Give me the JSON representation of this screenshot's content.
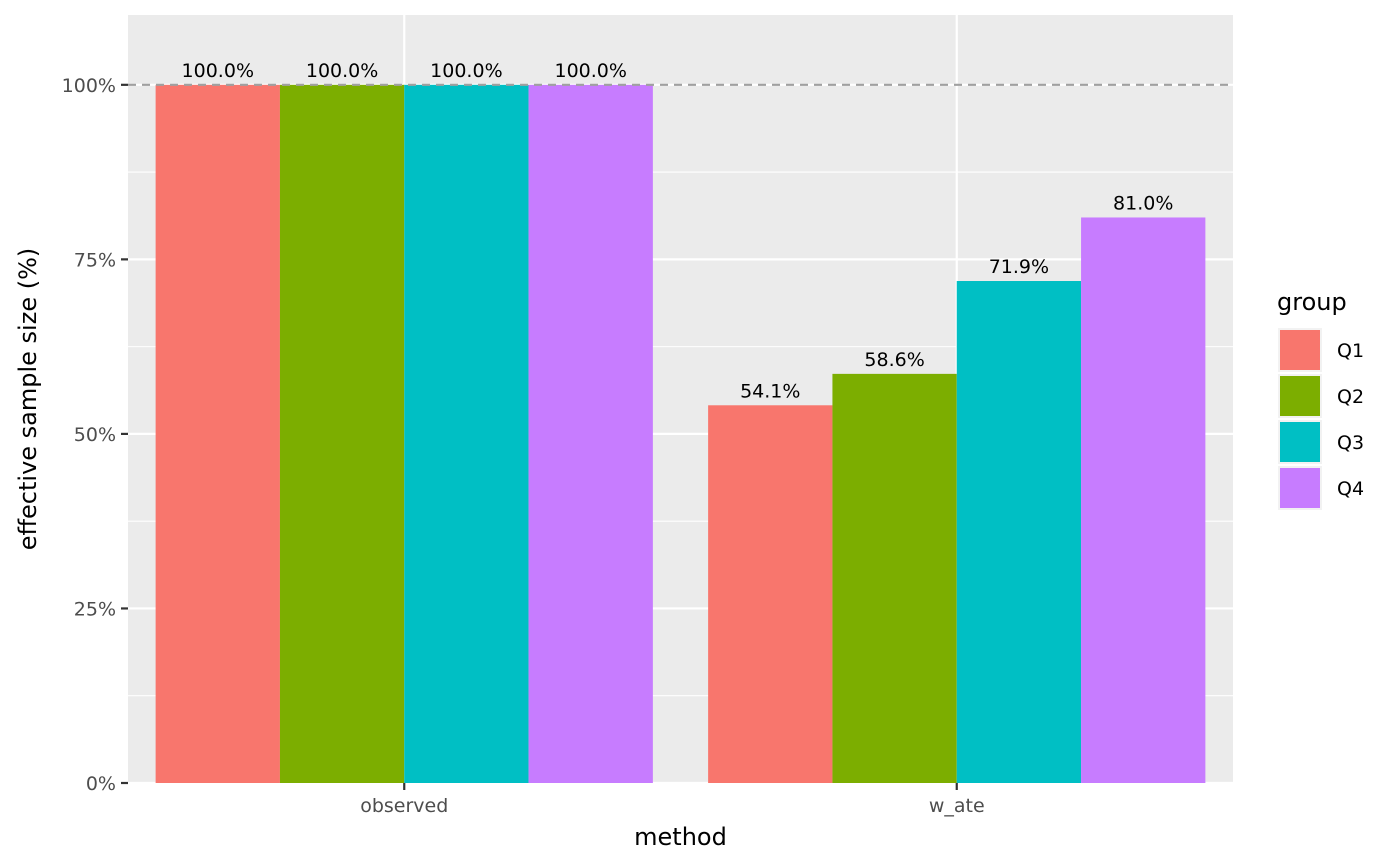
{
  "chart_data": {
    "type": "bar",
    "xlabel": "method",
    "ylabel": "effective sample size (%)",
    "categories": [
      "observed",
      "w_ate"
    ],
    "ylim": [
      0,
      110
    ],
    "y_ticks": [
      0,
      25,
      50,
      75,
      100
    ],
    "y_tick_labels": [
      "0%",
      "25%",
      "50%",
      "75%",
      "100%"
    ],
    "reference_line": {
      "y": 100,
      "style": "dashed",
      "color": "#a0a0a0"
    },
    "grid": true,
    "legend": {
      "title": "group",
      "position": "right"
    },
    "series": [
      {
        "name": "Q1",
        "color": "#F8766D",
        "values": [
          100.0,
          54.1
        ],
        "labels": [
          "100.0%",
          "54.1%"
        ]
      },
      {
        "name": "Q2",
        "color": "#7CAE00",
        "values": [
          100.0,
          58.6
        ],
        "labels": [
          "100.0%",
          "58.6%"
        ]
      },
      {
        "name": "Q3",
        "color": "#00BFC4",
        "values": [
          100.0,
          71.9
        ],
        "labels": [
          "100.0%",
          "71.9%"
        ]
      },
      {
        "name": "Q4",
        "color": "#C77CFF",
        "values": [
          100.0,
          81.0
        ],
        "labels": [
          "100.0%",
          "81.0%"
        ]
      }
    ],
    "panel_background": "#EBEBEB",
    "gridline_color": "#FFFFFF"
  }
}
